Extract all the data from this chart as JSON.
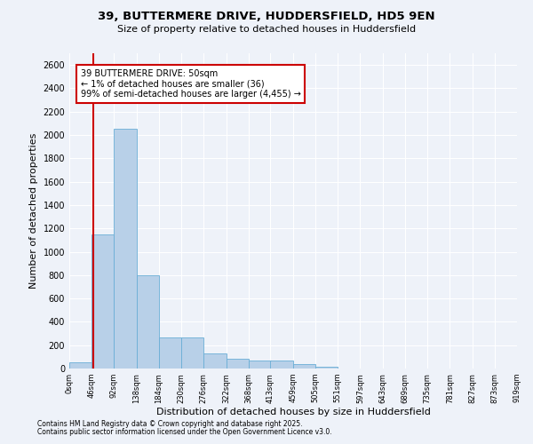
{
  "title1": "39, BUTTERMERE DRIVE, HUDDERSFIELD, HD5 9EN",
  "title2": "Size of property relative to detached houses in Huddersfield",
  "xlabel": "Distribution of detached houses by size in Huddersfield",
  "ylabel": "Number of detached properties",
  "footnote1": "Contains HM Land Registry data © Crown copyright and database right 2025.",
  "footnote2": "Contains public sector information licensed under the Open Government Licence v3.0.",
  "annotation_line1": "39 BUTTERMERE DRIVE: 50sqm",
  "annotation_line2": "← 1% of detached houses are smaller (36)",
  "annotation_line3": "99% of semi-detached houses are larger (4,455) →",
  "bar_color": "#b8d0e8",
  "bar_edge_color": "#6aaed6",
  "vline_color": "#cc0000",
  "vline_x": 50,
  "annotation_box_color": "#cc0000",
  "background_color": "#eef2f9",
  "bins": [
    0,
    46,
    92,
    138,
    184,
    230,
    276,
    322,
    368,
    413,
    459,
    505,
    551,
    597,
    643,
    689,
    735,
    781,
    827,
    873,
    919
  ],
  "bin_labels": [
    "0sqm",
    "46sqm",
    "92sqm",
    "138sqm",
    "184sqm",
    "230sqm",
    "276sqm",
    "322sqm",
    "368sqm",
    "413sqm",
    "459sqm",
    "505sqm",
    "551sqm",
    "597sqm",
    "643sqm",
    "689sqm",
    "735sqm",
    "781sqm",
    "827sqm",
    "873sqm",
    "919sqm"
  ],
  "bar_heights": [
    55,
    1150,
    2050,
    800,
    270,
    265,
    130,
    80,
    65,
    65,
    35,
    12,
    0,
    0,
    0,
    0,
    0,
    0,
    0,
    0
  ],
  "ylim": [
    0,
    2700
  ],
  "yticks": [
    0,
    200,
    400,
    600,
    800,
    1000,
    1200,
    1400,
    1600,
    1800,
    2000,
    2200,
    2400,
    2600
  ]
}
